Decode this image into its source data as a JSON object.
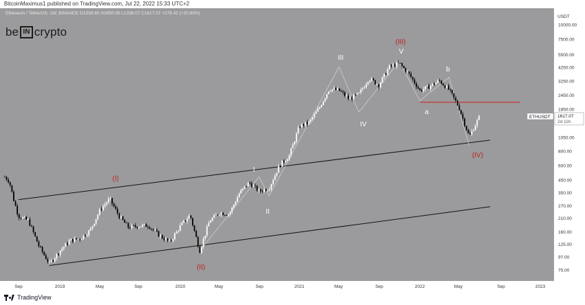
{
  "header": {
    "published_by": "BitcoinMaximus1 published on TradingView.com, Jul 22, 2022 15:33 UTC+2"
  },
  "legend": {
    "symbol_line": "Ethereum / TetherUS, 1W, BINANCE  O1338.65  H1650.05  L1336.07  C1617.07  +278.42 (+20.80%)"
  },
  "brand": {
    "left": "be",
    "box": "IN",
    "right": "crypto"
  },
  "footer": {
    "logo_text": "TradingView"
  },
  "colors": {
    "background": "#9b9b9d",
    "up": "#ffffff",
    "down": "#000000",
    "annotation_red": "#c0201b",
    "annotation_white": "#ffffff",
    "resistance": "#d01c1c"
  },
  "chart_data": {
    "type": "candlestick",
    "y_scale": "log",
    "currency_label": "USDT",
    "y_ticks": [
      75,
      97,
      125,
      160,
      210,
      270,
      350,
      450,
      600,
      800,
      1050,
      1400,
      1850,
      2450,
      3250,
      4250,
      5500,
      7500,
      10000
    ],
    "x_ticks": [
      "Sep",
      "2019",
      "May",
      "Sep",
      "2020",
      "May",
      "Sep",
      "2021",
      "May",
      "Sep",
      "2022",
      "May",
      "Sep",
      "2023"
    ],
    "price_tag": {
      "symbol": "ETHUSDT",
      "value": "1617.07",
      "countdown": "2d 11h"
    },
    "resistance_level": 2130,
    "channel": {
      "upper": [
        [
          "2018-09",
          305
        ],
        [
          "2022-08",
          1000
        ]
      ],
      "lower": [
        [
          "2018-12",
          82
        ],
        [
          "2022-08",
          265
        ]
      ]
    },
    "waves_red": [
      {
        "label": "(I)",
        "date": "2019-06",
        "price": 360
      },
      {
        "label": "(II)",
        "date": "2020-03",
        "price": 88
      },
      {
        "label": "(III)",
        "date": "2021-11",
        "price": 4800
      },
      {
        "label": "(IV)",
        "date": "2022-06",
        "price": 880
      }
    ],
    "waves_white": [
      {
        "label": "I",
        "date": "2020-09",
        "price": 480
      },
      {
        "label": "II",
        "date": "2020-09",
        "price": 310
      },
      {
        "label": "III",
        "date": "2021-05",
        "price": 4380
      },
      {
        "label": "IV",
        "date": "2021-07",
        "price": 1720
      },
      {
        "label": "V",
        "date": "2021-11",
        "price": 4880
      },
      {
        "label": "a",
        "date": "2022-01",
        "price": 2200
      },
      {
        "label": "b",
        "date": "2022-04",
        "price": 3600
      }
    ],
    "price_path": [
      [
        "2018-06",
        480
      ],
      [
        "2018-07",
        440
      ],
      [
        "2018-08",
        300
      ],
      [
        "2018-09",
        220
      ],
      [
        "2018-10",
        200
      ],
      [
        "2018-11",
        120
      ],
      [
        "2018-12",
        85
      ],
      [
        "2019-01",
        110
      ],
      [
        "2019-02",
        135
      ],
      [
        "2019-03",
        140
      ],
      [
        "2019-04",
        165
      ],
      [
        "2019-05",
        250
      ],
      [
        "2019-06",
        310
      ],
      [
        "2019-07",
        220
      ],
      [
        "2019-08",
        175
      ],
      [
        "2019-09",
        180
      ],
      [
        "2019-10",
        182
      ],
      [
        "2019-11",
        150
      ],
      [
        "2019-12",
        130
      ],
      [
        "2020-01",
        180
      ],
      [
        "2020-02",
        225
      ],
      [
        "2020-03",
        110
      ],
      [
        "2020-04",
        200
      ],
      [
        "2020-05",
        235
      ],
      [
        "2020-06",
        228
      ],
      [
        "2020-07",
        345
      ],
      [
        "2020-08",
        430
      ],
      [
        "2020-09",
        360
      ],
      [
        "2020-10",
        385
      ],
      [
        "2020-11",
        600
      ],
      [
        "2020-12",
        735
      ],
      [
        "2021-01",
        1320
      ],
      [
        "2021-02",
        1420
      ],
      [
        "2021-03",
        1900
      ],
      [
        "2021-04",
        2770
      ],
      [
        "2021-05",
        2700
      ],
      [
        "2021-06",
        2280
      ],
      [
        "2021-07",
        2500
      ],
      [
        "2021-08",
        3430
      ],
      [
        "2021-09",
        3000
      ],
      [
        "2021-10",
        4300
      ],
      [
        "2021-11",
        4630
      ],
      [
        "2021-12",
        3680
      ],
      [
        "2022-01",
        2690
      ],
      [
        "2022-02",
        2920
      ],
      [
        "2022-03",
        3280
      ],
      [
        "2022-04",
        2730
      ],
      [
        "2022-05",
        1940
      ],
      [
        "2022-06",
        1070
      ],
      [
        "2022-07",
        1617
      ]
    ]
  }
}
